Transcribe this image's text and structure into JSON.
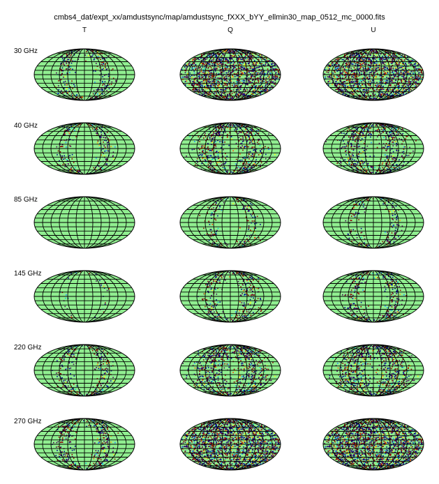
{
  "title": "cmbs4_dat/expt_xx/amdustsync/map/amdustsync_fXXX_bYY_ellmin30_map_0512_mc_0000.fits",
  "columns": [
    "T",
    "Q",
    "U"
  ],
  "rows": [
    "30 GHz",
    "40 GHz",
    "85 GHz",
    "145 GHz",
    "220 GHz",
    "270 GHz"
  ],
  "palette": {
    "background": "#90ee90",
    "dominant": [
      "#8b0000",
      "#00008b",
      "#4b0055"
    ],
    "speckle": [
      "#ffa500",
      "#00ced1",
      "#ffff00",
      "#ff4500",
      "#1e90ff"
    ],
    "grid": "#000000"
  },
  "maps": [
    [
      {
        "amount": 0.55,
        "extent": 0.28,
        "kind": "ring"
      },
      {
        "amount": 0.85,
        "extent": 0.9,
        "kind": "full"
      },
      {
        "amount": 0.85,
        "extent": 0.9,
        "kind": "full"
      }
    ],
    [
      {
        "amount": 0.45,
        "extent": 0.22,
        "kind": "ring"
      },
      {
        "amount": 0.7,
        "extent": 0.55,
        "kind": "ring"
      },
      {
        "amount": 0.7,
        "extent": 0.55,
        "kind": "ring"
      }
    ],
    [
      {
        "amount": 0.0,
        "extent": 0.0,
        "kind": "ring"
      },
      {
        "amount": 0.4,
        "extent": 0.2,
        "kind": "ring"
      },
      {
        "amount": 0.4,
        "extent": 0.2,
        "kind": "ring"
      }
    ],
    [
      {
        "amount": 0.15,
        "extent": 0.08,
        "kind": "ring"
      },
      {
        "amount": 0.55,
        "extent": 0.3,
        "kind": "ring"
      },
      {
        "amount": 0.55,
        "extent": 0.3,
        "kind": "ring"
      }
    ],
    [
      {
        "amount": 0.5,
        "extent": 0.25,
        "kind": "ring"
      },
      {
        "amount": 0.8,
        "extent": 0.65,
        "kind": "ring"
      },
      {
        "amount": 0.8,
        "extent": 0.65,
        "kind": "ring"
      }
    ],
    [
      {
        "amount": 0.6,
        "extent": 0.3,
        "kind": "ring"
      },
      {
        "amount": 0.9,
        "extent": 0.95,
        "kind": "full"
      },
      {
        "amount": 0.9,
        "extent": 0.95,
        "kind": "full"
      }
    ]
  ]
}
